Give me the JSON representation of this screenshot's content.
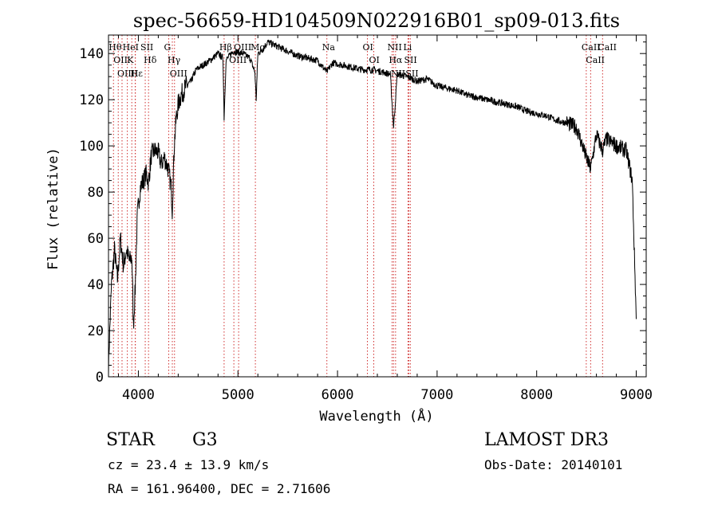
{
  "chart_data": {
    "type": "line",
    "title": "spec-56659-HD104509N022916B01_sp09-013.fits",
    "xlabel": "Wavelength (Å)",
    "ylabel": "Flux (relative)",
    "xlim": [
      3700,
      9100
    ],
    "ylim": [
      0,
      148
    ],
    "x_ticks": [
      4000,
      5000,
      6000,
      7000,
      8000,
      9000
    ],
    "x_tick_labels": [
      "4000",
      "5000",
      "6000",
      "7000",
      "8000",
      "9000"
    ],
    "y_ticks": [
      0,
      20,
      40,
      60,
      80,
      100,
      120,
      140
    ],
    "y_tick_labels": [
      "0",
      "20",
      "40",
      "60",
      "80",
      "100",
      "120",
      "140"
    ],
    "grid": false,
    "series": [
      {
        "color": "#000000",
        "x": [
          3700,
          3730,
          3760,
          3790,
          3820,
          3850,
          3880,
          3910,
          3935,
          3950,
          3968,
          3990,
          4020,
          4050,
          4080,
          4101,
          4130,
          4160,
          4200,
          4230,
          4260,
          4300,
          4330,
          4340,
          4360,
          4380,
          4400,
          4430,
          4480,
          4530,
          4580,
          4650,
          4720,
          4800,
          4850,
          4861,
          4880,
          4950,
          5050,
          5120,
          5170,
          5183,
          5200,
          5250,
          5300,
          5400,
          5500,
          5600,
          5700,
          5800,
          5893,
          5950,
          6050,
          6150,
          6250,
          6350,
          6450,
          6530,
          6563,
          6600,
          6700,
          6800,
          6900,
          7000,
          7100,
          7200,
          7300,
          7400,
          7500,
          7600,
          7700,
          7800,
          7900,
          8000,
          8100,
          8200,
          8300,
          8400,
          8498,
          8542,
          8600,
          8662,
          8700,
          8800,
          8900,
          8960,
          9000
        ],
        "y": [
          5,
          40,
          55,
          42,
          60,
          48,
          55,
          50,
          52,
          22,
          38,
          70,
          82,
          85,
          88,
          84,
          96,
          98,
          97,
          92,
          95,
          90,
          82,
          72,
          100,
          112,
          118,
          122,
          126,
          128,
          133,
          135,
          137,
          140,
          138,
          112,
          137,
          141,
          140,
          138,
          132,
          120,
          140,
          142,
          145,
          143,
          141,
          139,
          138,
          137,
          132,
          136,
          135,
          134,
          133,
          133,
          132,
          131,
          108,
          131,
          130,
          128,
          129,
          126,
          125,
          124,
          122,
          121,
          120,
          119,
          118,
          117,
          115,
          114,
          113,
          111,
          110,
          108,
          95,
          90,
          105,
          98,
          103,
          100,
          98,
          85,
          25
        ]
      }
    ],
    "lines": [
      {
        "x": 3750,
        "label": "Hθ"
      },
      {
        "x": 3798,
        "label": "OII"
      },
      {
        "x": 3836,
        "label": "OIII"
      },
      {
        "x": 3889,
        "label": "HeI"
      },
      {
        "x": 3934,
        "label": "K"
      },
      {
        "x": 3968,
        "label": "H"
      },
      {
        "x": 3970,
        "label": "Hε"
      },
      {
        "x": 4069,
        "label": "SII"
      },
      {
        "x": 4102,
        "label": "Hδ"
      },
      {
        "x": 4305,
        "label": "G"
      },
      {
        "x": 4341,
        "label": "Hγ"
      },
      {
        "x": 4363,
        "label": "OIII"
      },
      {
        "x": 4861,
        "label": "Hβ"
      },
      {
        "x": 4959,
        "label": "OIII"
      },
      {
        "x": 5007,
        "label": "OIII"
      },
      {
        "x": 5175,
        "label": "Mg"
      },
      {
        "x": 5893,
        "label": "Na"
      },
      {
        "x": 6300,
        "label": "OI"
      },
      {
        "x": 6364,
        "label": "OI"
      },
      {
        "x": 6548,
        "label": "NII"
      },
      {
        "x": 6563,
        "label": "Hα"
      },
      {
        "x": 6583,
        "label": "NII"
      },
      {
        "x": 6708,
        "label": "Li"
      },
      {
        "x": 6716,
        "label": "SII"
      },
      {
        "x": 6731,
        "label": "SII"
      },
      {
        "x": 8498,
        "label": "CaII"
      },
      {
        "x": 8542,
        "label": "CaII"
      },
      {
        "x": 8662,
        "label": "CaII"
      }
    ]
  },
  "info": {
    "class": "STAR",
    "subclass": "G3",
    "survey": "LAMOST DR3",
    "cz": "cz = 23.4 ± 13.9 km/s",
    "obs_date": "Obs-Date: 20140101",
    "coords": "RA = 161.96400, DEC =    2.71606"
  }
}
